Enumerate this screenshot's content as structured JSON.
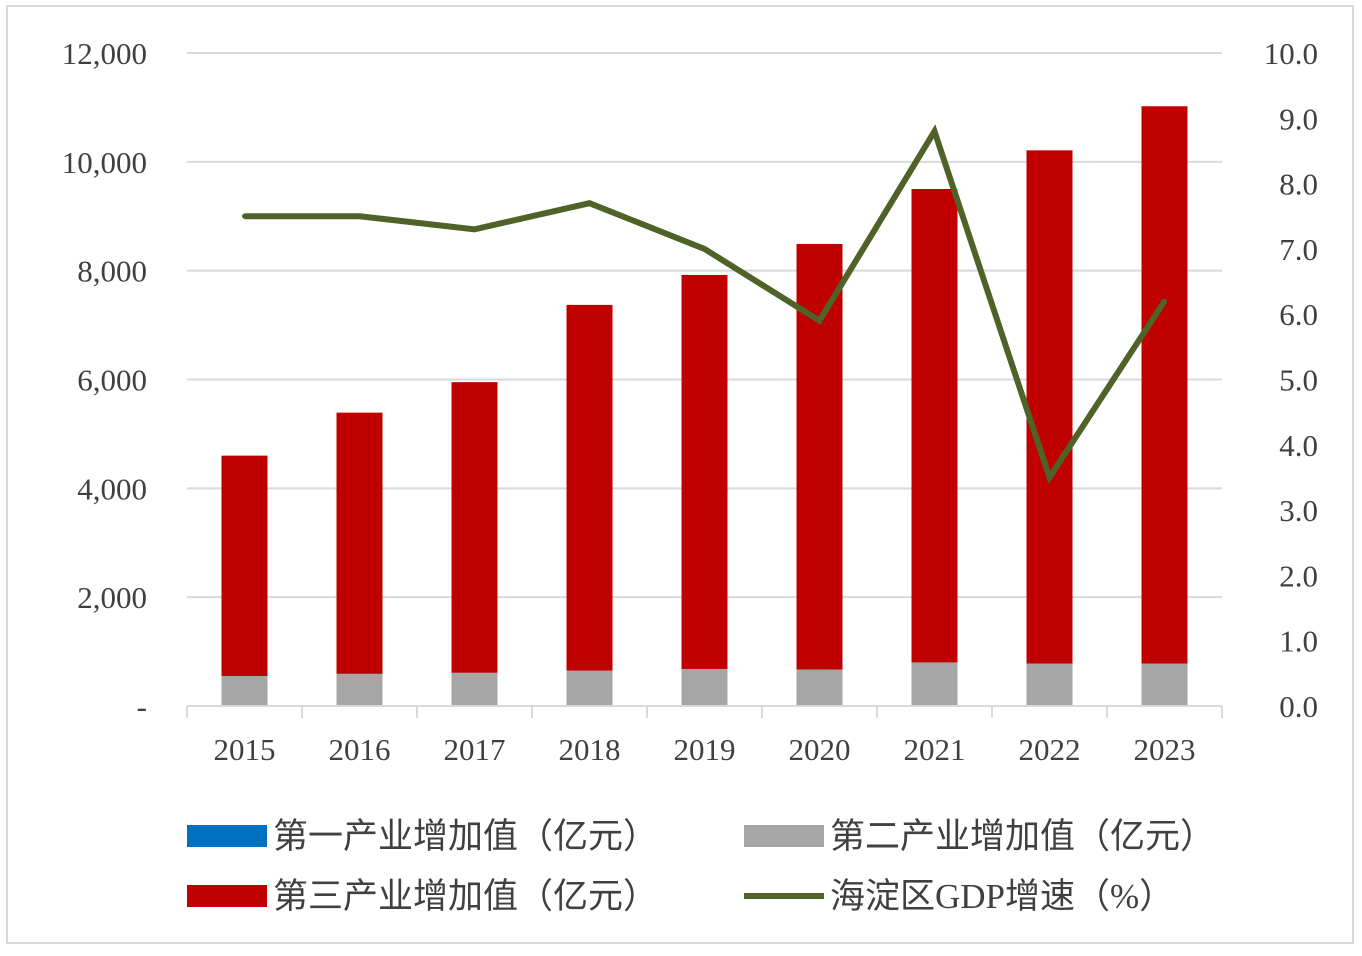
{
  "chart_data": {
    "type": "bar",
    "categories": [
      "2015",
      "2016",
      "2017",
      "2018",
      "2019",
      "2020",
      "2021",
      "2022",
      "2023"
    ],
    "y_left": {
      "ylim": [
        0,
        12000
      ],
      "ticks": [
        0,
        2000,
        4000,
        6000,
        8000,
        10000,
        12000
      ],
      "tick_labels": [
        "-",
        "2,000",
        "4,000",
        "6,000",
        "8,000",
        "10,000",
        "12,000"
      ]
    },
    "y_right": {
      "ylim": [
        0,
        10
      ],
      "ticks": [
        0,
        1,
        2,
        3,
        4,
        5,
        6,
        7,
        8,
        9,
        10
      ],
      "tick_labels": [
        "0.0",
        "1.0",
        "2.0",
        "3.0",
        "4.0",
        "5.0",
        "6.0",
        "7.0",
        "8.0",
        "9.0",
        "10.0"
      ]
    },
    "grid": true,
    "legend_position": "bottom",
    "series": [
      {
        "name": "第一产业增加值（亿元）",
        "type": "bar",
        "axis": "left",
        "color": "#0070c0",
        "values": [
          1,
          1,
          1,
          1,
          1,
          1,
          1,
          1,
          1
        ]
      },
      {
        "name": "第二产业增加值（亿元）",
        "type": "bar",
        "axis": "left",
        "color": "#a6a6a6",
        "values": [
          550,
          590,
          610,
          650,
          680,
          670,
          800,
          780,
          780
        ]
      },
      {
        "name": "第三产业增加值（亿元）",
        "type": "bar",
        "axis": "left",
        "color": "#c00000",
        "values": [
          4050,
          4800,
          5340,
          6720,
          7240,
          7820,
          8700,
          9430,
          10240
        ]
      },
      {
        "name": "海淀区GDP增速（%）",
        "type": "line",
        "axis": "right",
        "color": "#4f6228",
        "values": [
          7.5,
          7.5,
          7.3,
          7.7,
          7.0,
          5.9,
          8.8,
          3.5,
          6.2
        ]
      }
    ]
  }
}
